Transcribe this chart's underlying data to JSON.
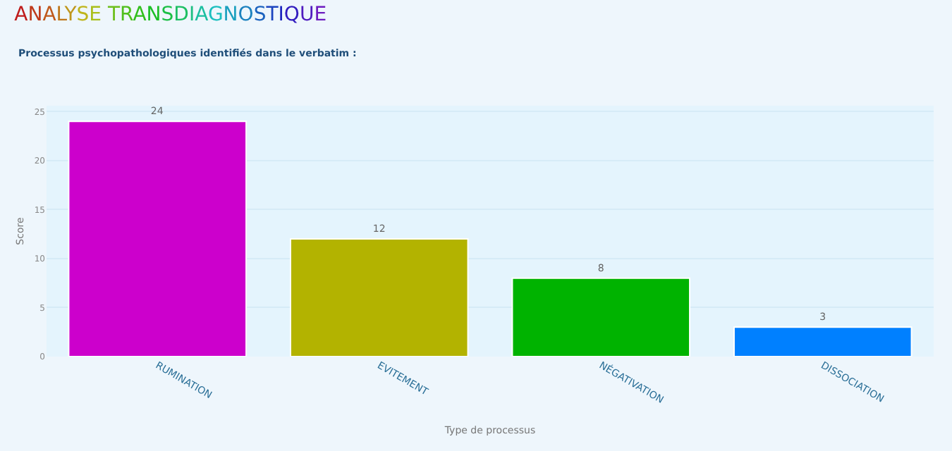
{
  "chart_data": {
    "type": "bar",
    "title": "ANALYSE TRANSDIAGNOSTIQUE",
    "subtitle": "Processus psychopathologiques identifiés dans le verbatim :",
    "xlabel": "Type de processus",
    "ylabel": "Score",
    "categories": [
      "RUMINATION",
      "EVITEMENT",
      "NÉGATIVATION",
      "DISSOCIATION"
    ],
    "values": [
      24,
      12,
      8,
      3
    ],
    "colors": [
      "#cc00cc",
      "#b3b300",
      "#00b300",
      "#0080ff"
    ],
    "ylim": [
      0,
      25.6
    ],
    "yticks": [
      0,
      5,
      10,
      15,
      20,
      25
    ],
    "grid": "y",
    "data_labels": true
  }
}
